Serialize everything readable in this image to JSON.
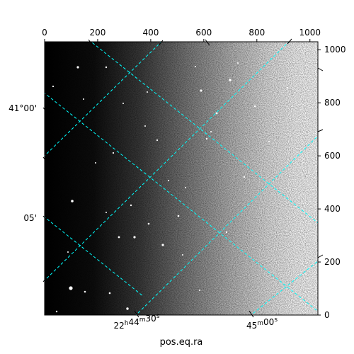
{
  "chart_data": {
    "type": "heatmap",
    "description_axes": {
      "top_pixel_ticks": [
        "0",
        "200",
        "400",
        "600",
        "800",
        "1000"
      ],
      "right_pixel_ticks": [
        "0",
        "200",
        "400",
        "600",
        "800",
        "1000"
      ],
      "pixel_range": [
        0,
        1030
      ],
      "dec_tick_labels": [
        "41°00'",
        "05'"
      ],
      "ra_tick_labels": [
        {
          "h": "22",
          "m": "44",
          "s": "30",
          "hsup": "h",
          "msup": "m",
          "ssup": "s"
        },
        {
          "h": "",
          "m": "45",
          "s": "00",
          "hsup": "",
          "msup": "m",
          "ssup": "s"
        }
      ]
    },
    "xlabel": "pos.eq.ra",
    "ylabel": "",
    "title": "",
    "grid": true,
    "grid_color": "#00ffff",
    "colormap": "gray",
    "brightness_trend": "dark on left, bright on right"
  }
}
